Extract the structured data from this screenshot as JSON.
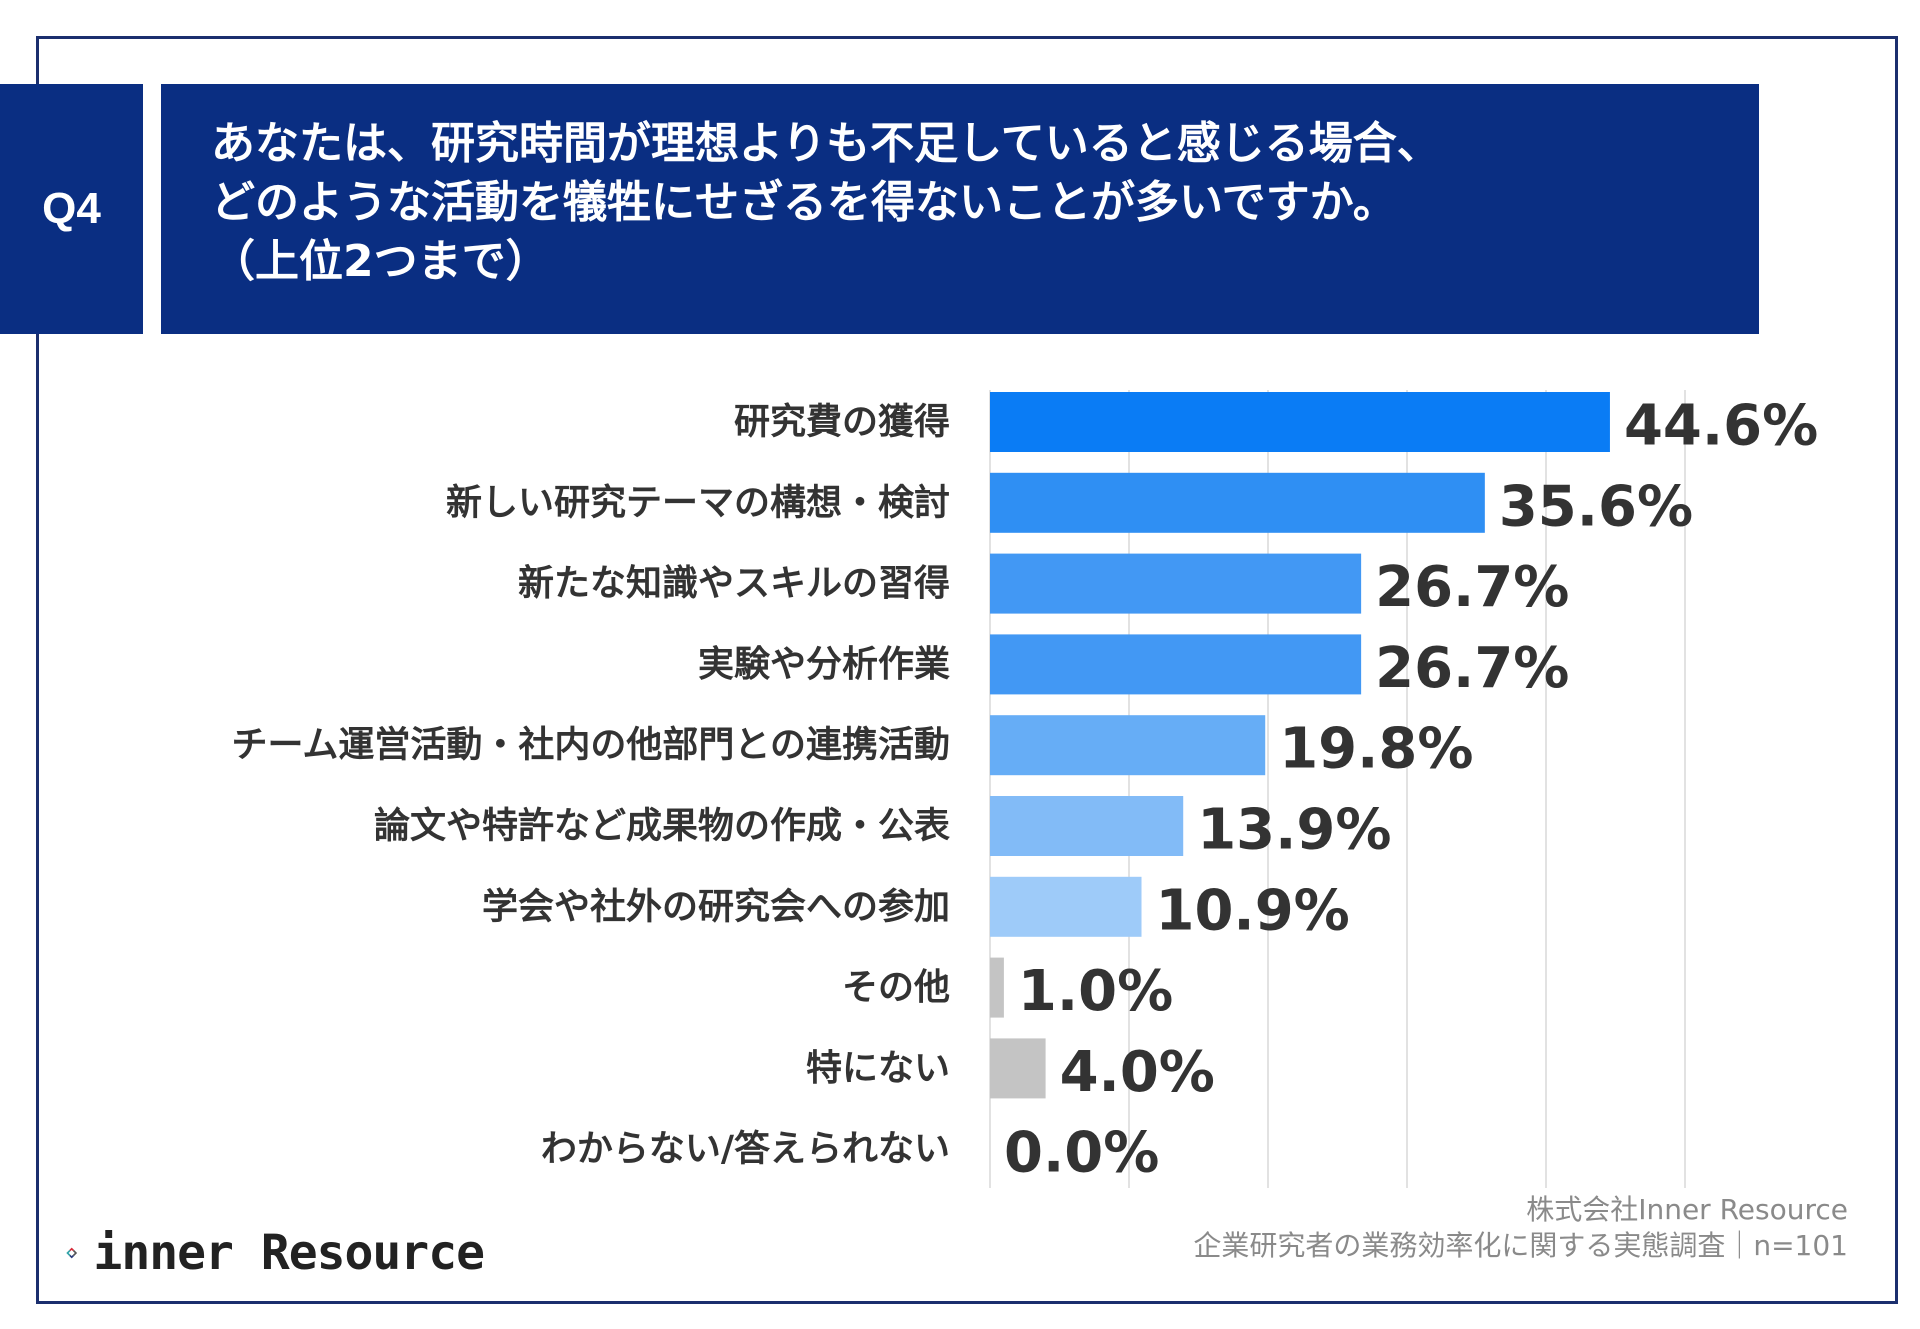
{
  "question": {
    "badge": "Q4",
    "lines": [
      "あなたは、研究時間が理想よりも不足していると感じる場合、",
      "どのような活動を犠牲にせざるを得ないことが多いですか。",
      "（上位2つまで）"
    ]
  },
  "chart_data": {
    "type": "bar",
    "orientation": "horizontal",
    "categories": [
      "研究費の獲得",
      "新しい研究テーマの構想・検討",
      "新たな知識やスキルの習得",
      "実験や分析作業",
      "チーム運営活動・社内の他部門との連携活動",
      "論文や特許など成果物の作成・公表",
      "学会や社外の研究会への参加",
      "その他",
      "特にない",
      "わからない/答えられない"
    ],
    "values": [
      44.6,
      35.6,
      26.7,
      26.7,
      19.8,
      13.9,
      10.9,
      1.0,
      4.0,
      0.0
    ],
    "value_labels": [
      "44.6%",
      "35.6%",
      "26.7%",
      "26.7%",
      "19.8%",
      "13.9%",
      "10.9%",
      "1.0%",
      "4.0%",
      "0.0%"
    ],
    "bar_colors": [
      "#0a7cf5",
      "#2f8ff3",
      "#4298f4",
      "#4298f4",
      "#66adf6",
      "#82bbf7",
      "#9ecbf9",
      "#c4c4c4",
      "#c4c4c4",
      "#c4c4c4"
    ],
    "xlim": [
      0,
      50
    ],
    "grid": true,
    "title": "",
    "xlabel": "",
    "ylabel": ""
  },
  "footer": {
    "logo_text": "inner Resource",
    "source_line1": "株式会社Inner Resource",
    "source_line2": "企業研究者の業務効率化に関する実態調査｜n=101"
  }
}
